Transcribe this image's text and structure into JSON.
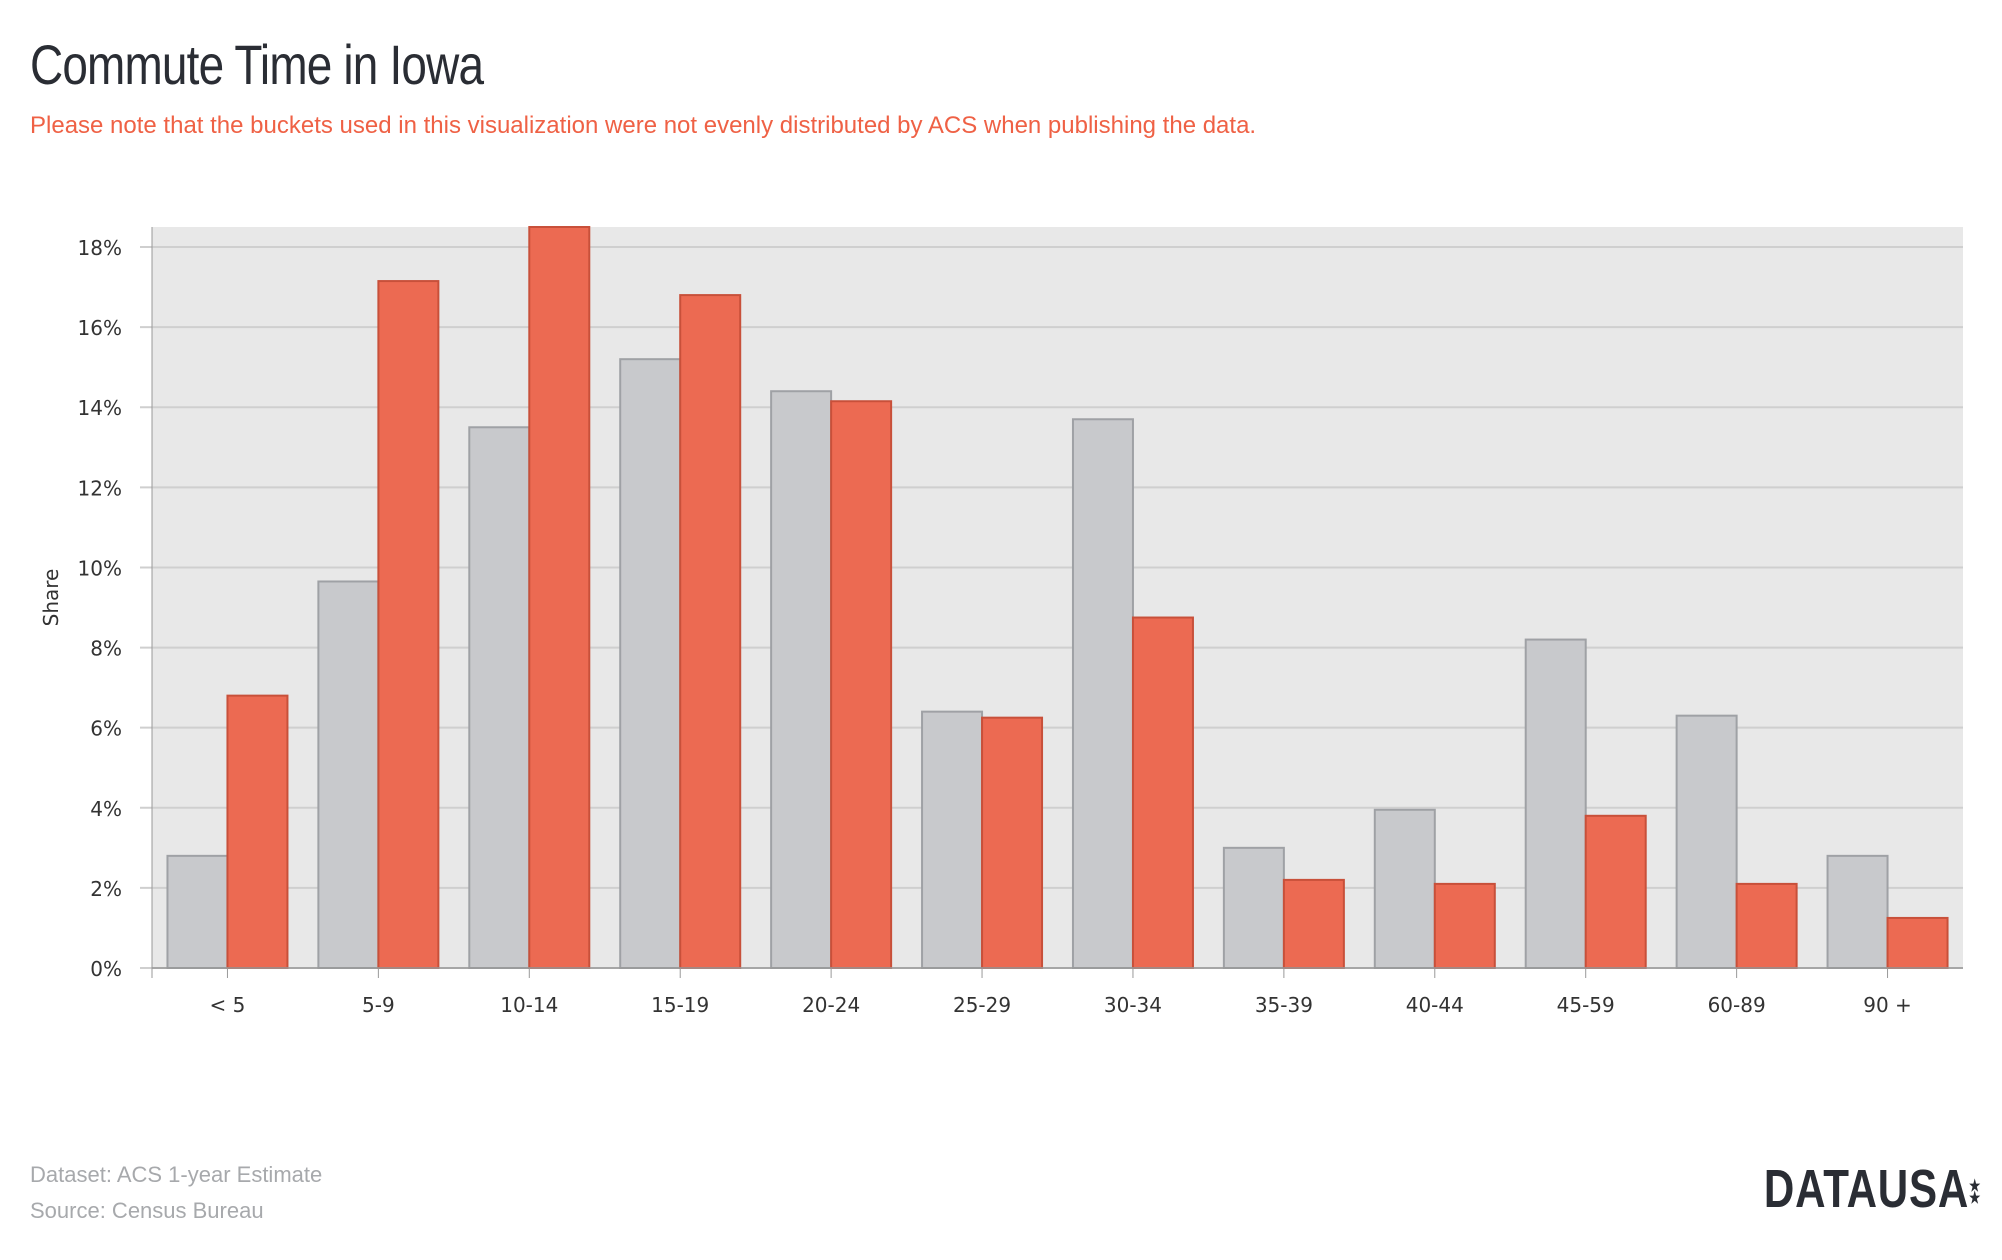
{
  "title": "Commute Time in Iowa",
  "subtitle": "Please note that the buckets used in this visualization were not evenly distributed by ACS when publishing the data.",
  "footer": {
    "dataset": "Dataset: ACS 1-year Estimate",
    "source": "Source: Census Bureau"
  },
  "logo": {
    "text": "DATAUSA",
    "icon": "stars-icon"
  },
  "colors": {
    "series_gray": "#c8c9cc",
    "series_gray_stroke": "#9fa1a5",
    "series_red": "#ec6a52",
    "series_red_stroke": "#c8503a",
    "plot_bg": "#e8e8e8",
    "grid": "#cfcfcf",
    "title": "#2a2d34",
    "subtitle": "#ef6145"
  },
  "chart_data": {
    "type": "bar",
    "ylabel": "Share",
    "xlabel": "",
    "ylim": [
      0,
      18.5
    ],
    "yticks": [
      0,
      2,
      4,
      6,
      8,
      10,
      12,
      14,
      16,
      18
    ],
    "ytick_suffix": "%",
    "grid": true,
    "categories": [
      "< 5",
      "5-9",
      "10-14",
      "15-19",
      "20-24",
      "25-29",
      "30-34",
      "35-39",
      "40-44",
      "45-59",
      "60-89",
      "90 +"
    ],
    "series": [
      {
        "values": [
          2.8,
          9.65,
          13.5,
          15.2,
          14.4,
          6.4,
          13.7,
          3.0,
          3.95,
          8.2,
          6.3,
          2.8
        ]
      },
      {
        "values": [
          6.8,
          17.15,
          18.5,
          16.8,
          14.15,
          6.25,
          8.75,
          2.2,
          2.1,
          3.8,
          2.1,
          1.25
        ]
      }
    ]
  }
}
